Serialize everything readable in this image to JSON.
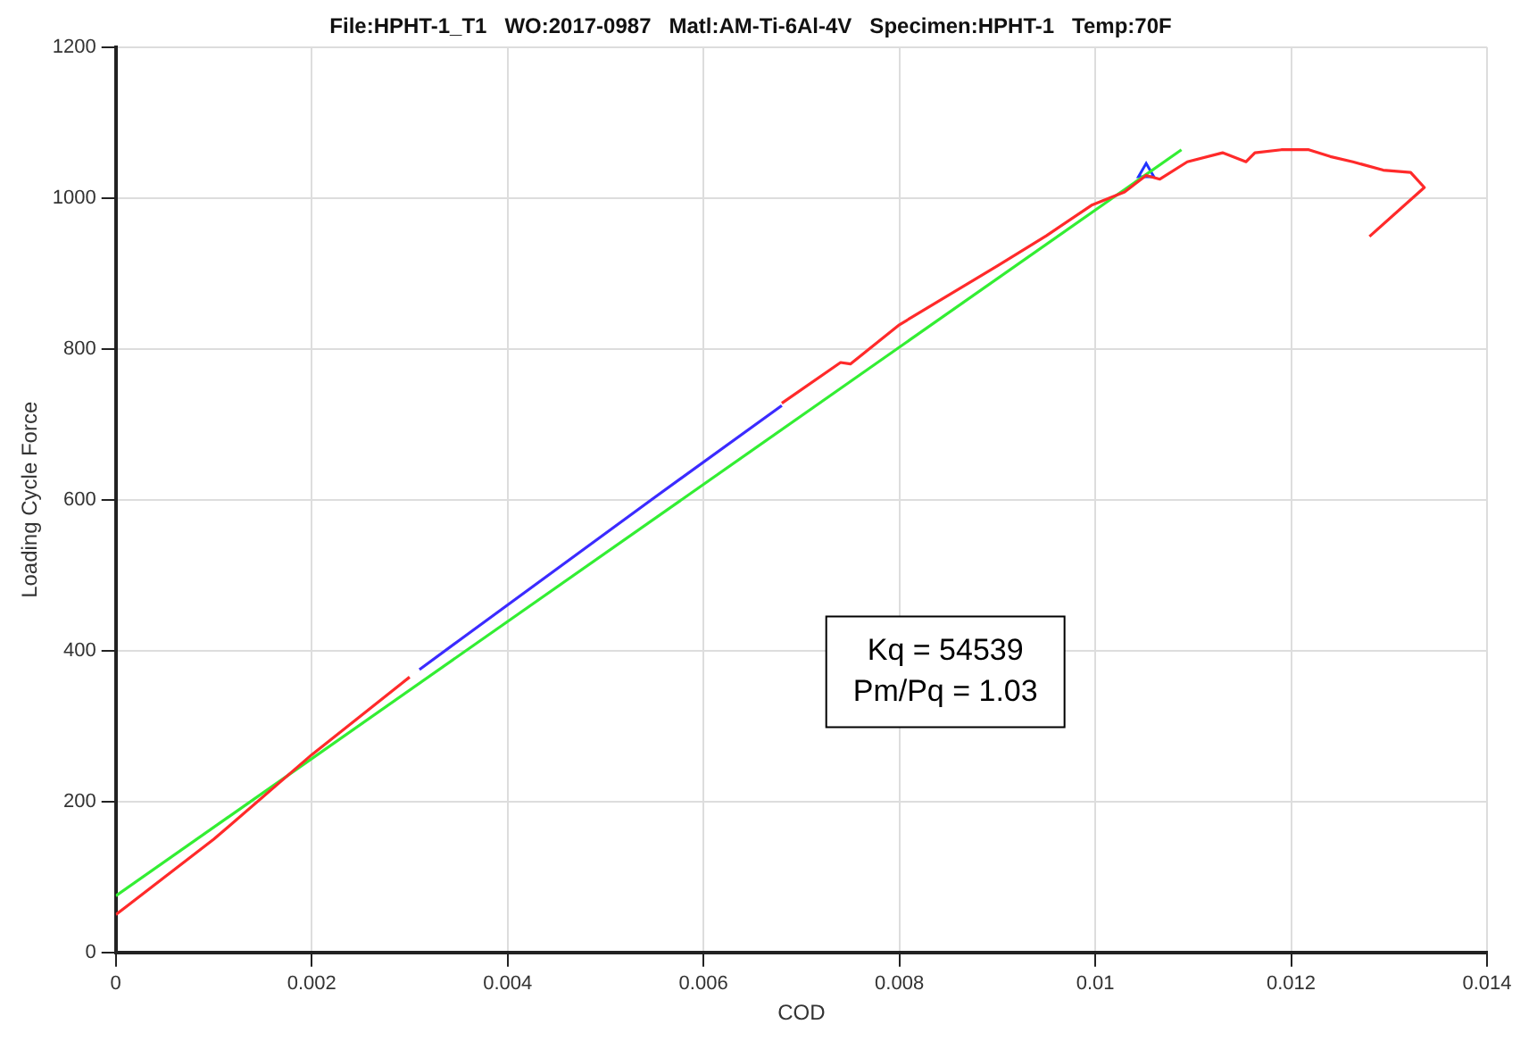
{
  "chart_data": {
    "type": "line",
    "title": "File:HPHT-1_T1   WO:2017-0987   Matl:AM-Ti-6Al-4V   Specimen:HPHT-1   Temp:70F",
    "xlabel": "COD",
    "ylabel": "Loading Cycle Force",
    "xlim": [
      0,
      0.014
    ],
    "xticks": [
      0,
      0.002,
      0.004,
      0.006,
      0.008,
      0.01,
      0.012,
      0.014
    ],
    "ylim": [
      0,
      1200
    ],
    "yticks": [
      0,
      200,
      400,
      600,
      800,
      1000,
      1200
    ],
    "grid": true,
    "marker": "none",
    "annotations": [
      "Kq = 54539",
      "Pm/Pq = 1.03"
    ],
    "series": [
      {
        "color": "#ff2a2a",
        "x": [
          0,
          0.001,
          0.002,
          0.003,
          0.0031,
          0.0068,
          0.0074,
          0.0075,
          0.008,
          0.009,
          0.0095,
          0.00997,
          0.0103,
          0.01052,
          0.01066,
          0.01094,
          0.0113,
          0.01154,
          0.01163,
          0.0119,
          0.01218,
          0.0124,
          0.01263,
          0.01294,
          0.01322,
          0.01336,
          0.0128
        ],
        "values": [
          50,
          150,
          262,
          365,
          null,
          728,
          782,
          780,
          832,
          910,
          950,
          991,
          1008,
          1030,
          1025,
          1048,
          1060,
          1048,
          1060,
          1064,
          1064,
          1055,
          1048,
          1037,
          1034,
          1014,
          949
        ]
      },
      {
        "color": "#3b2bff",
        "x": [
          0.0031,
          0.0035,
          0.0045,
          0.0055,
          0.0068
        ],
        "values": [
          375,
          413,
          508,
          603,
          725
        ]
      },
      {
        "color": "#33ee33",
        "x": [
          0,
          0.01088
        ],
        "values": [
          75,
          1064
        ]
      },
      {
        "type": "scatter",
        "color": "#2233ff",
        "marker": "triangle",
        "x": [
          0.01052
        ],
        "values": [
          1034
        ]
      }
    ]
  }
}
